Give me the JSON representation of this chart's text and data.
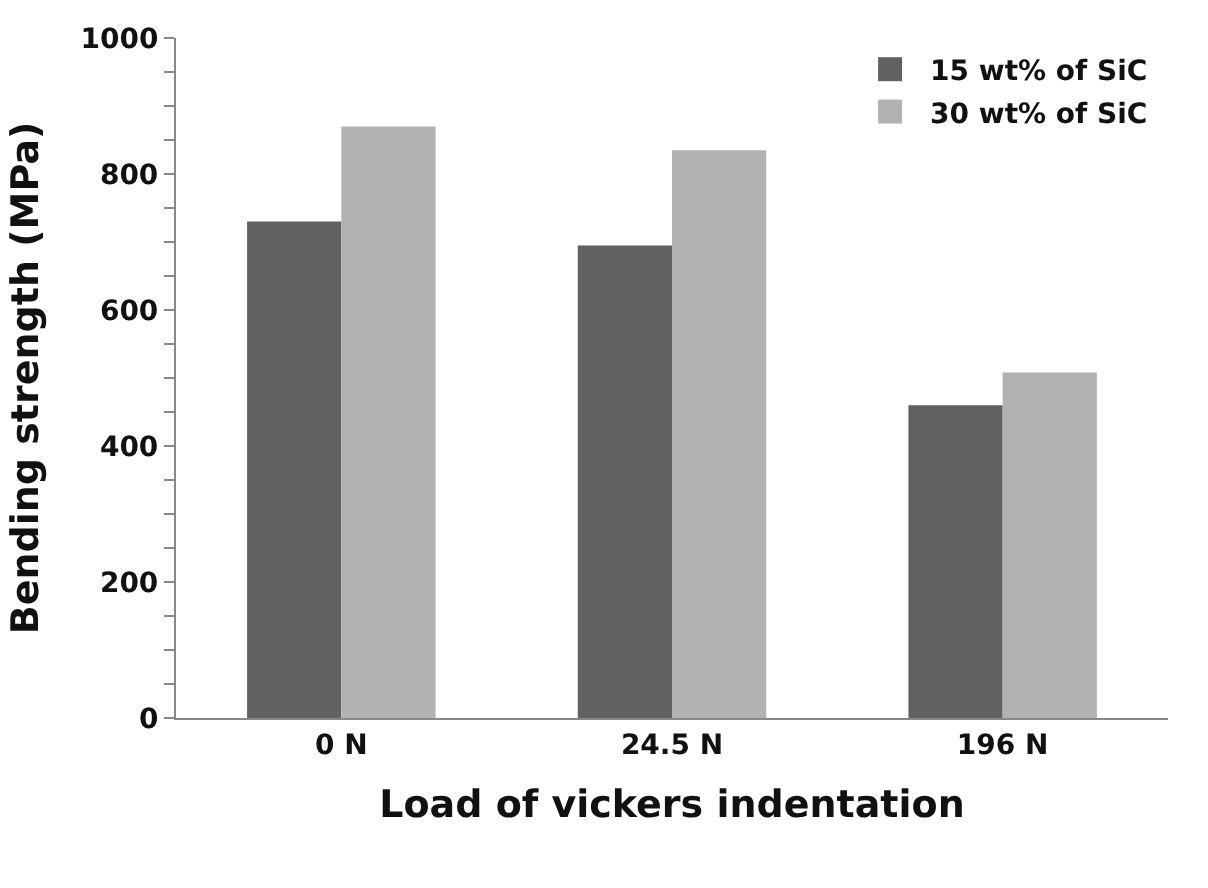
{
  "chart_data": {
    "type": "bar",
    "xlabel": "Load of vickers indentation",
    "ylabel": "Bending strength (MPa)",
    "categories": [
      "0 N",
      "24.5 N",
      "196 N"
    ],
    "series": [
      {
        "name": "15 wt% of SiC",
        "color": "#616161",
        "values": [
          730,
          695,
          460
        ]
      },
      {
        "name": "30 wt% of SiC",
        "color": "#b2b2b2",
        "values": [
          870,
          835,
          508
        ]
      }
    ],
    "ylim": [
      0,
      1000
    ],
    "yticks": [
      0,
      {
        "value": 50,
        "label": null
      },
      {
        "value": 100,
        "label": null
      },
      {
        "value": 150,
        "label": null
      },
      200,
      {
        "value": 250,
        "label": null
      },
      {
        "value": 300,
        "label": null
      },
      {
        "value": 350,
        "label": null
      },
      400,
      {
        "value": 450,
        "label": null
      },
      {
        "value": 500,
        "label": null
      },
      {
        "value": 550,
        "label": null
      },
      600,
      {
        "value": 650,
        "label": null
      },
      {
        "value": 700,
        "label": null
      },
      {
        "value": 750,
        "label": null
      },
      800,
      {
        "value": 850,
        "label": null
      },
      {
        "value": 900,
        "label": null
      },
      {
        "value": 950,
        "label": null
      },
      1000
    ],
    "legend": "top right"
  }
}
